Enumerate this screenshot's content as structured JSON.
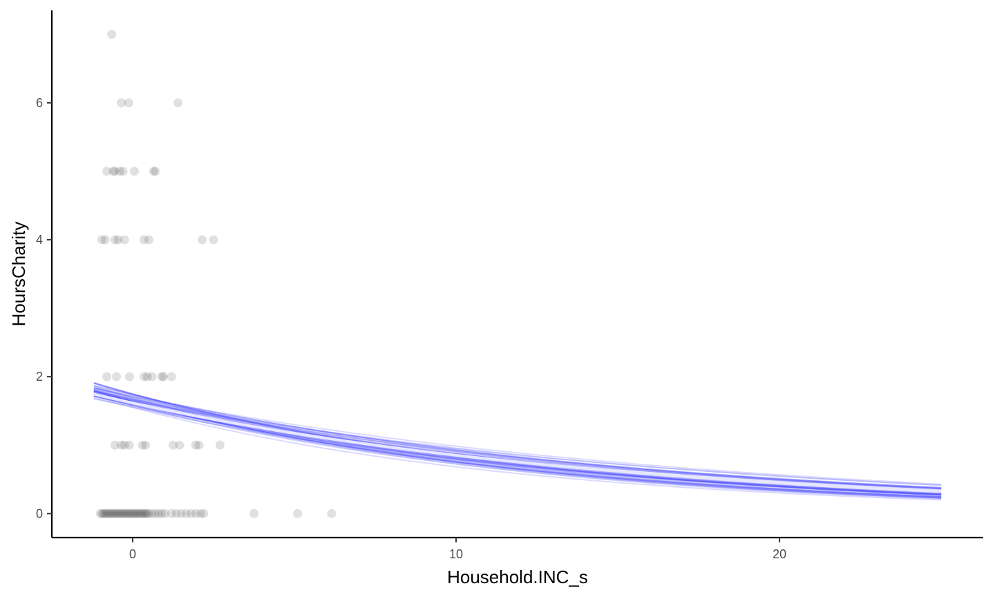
{
  "chart_data": {
    "type": "scatter",
    "xlabel": "Household.INC_s",
    "ylabel": "HoursCharity",
    "xlim": [
      -2.5,
      26.3
    ],
    "ylim": [
      -0.35,
      7.35
    ],
    "x_ticks": [
      0,
      10,
      20
    ],
    "x_tick_labels": [
      "0",
      "10",
      "20"
    ],
    "y_ticks": [
      0,
      2,
      4,
      6
    ],
    "y_tick_labels": [
      "0",
      "2",
      "4",
      "6"
    ],
    "grid": false,
    "legend": "none",
    "colors": {
      "points": "#000000",
      "fit_lines": "#3333ff",
      "mean_line": "#e6e6ff",
      "axis": "#000000"
    },
    "points": {
      "opacity": 0.12,
      "data": [
        [
          -0.65,
          7
        ],
        [
          -0.35,
          6
        ],
        [
          -0.12,
          6
        ],
        [
          1.4,
          6
        ],
        [
          -0.8,
          5
        ],
        [
          -0.6,
          5
        ],
        [
          -0.55,
          5
        ],
        [
          -0.4,
          5
        ],
        [
          -0.3,
          5
        ],
        [
          0.05,
          5
        ],
        [
          0.65,
          5
        ],
        [
          0.7,
          5
        ],
        [
          -0.95,
          4
        ],
        [
          -0.85,
          4
        ],
        [
          -0.55,
          4
        ],
        [
          -0.45,
          4
        ],
        [
          -0.25,
          4
        ],
        [
          0.35,
          4
        ],
        [
          0.5,
          4
        ],
        [
          2.15,
          4
        ],
        [
          2.5,
          4
        ],
        [
          -0.8,
          2
        ],
        [
          -0.5,
          2
        ],
        [
          -0.1,
          2
        ],
        [
          0.35,
          2
        ],
        [
          0.45,
          2
        ],
        [
          0.6,
          2
        ],
        [
          0.9,
          2
        ],
        [
          0.95,
          2
        ],
        [
          1.2,
          2
        ],
        [
          -0.55,
          1
        ],
        [
          -0.35,
          1
        ],
        [
          -0.25,
          1
        ],
        [
          -0.1,
          1
        ],
        [
          0.3,
          1
        ],
        [
          0.4,
          1
        ],
        [
          1.25,
          1
        ],
        [
          1.45,
          1
        ],
        [
          1.95,
          1
        ],
        [
          2.05,
          1
        ],
        [
          2.7,
          1
        ],
        [
          -1.0,
          0
        ],
        [
          -0.95,
          0
        ],
        [
          -0.9,
          0
        ],
        [
          -0.85,
          0
        ],
        [
          -0.8,
          0
        ],
        [
          -0.75,
          0
        ],
        [
          -0.7,
          0
        ],
        [
          -0.65,
          0
        ],
        [
          -0.6,
          0
        ],
        [
          -0.55,
          0
        ],
        [
          -0.5,
          0
        ],
        [
          -0.45,
          0
        ],
        [
          -0.4,
          0
        ],
        [
          -0.35,
          0
        ],
        [
          -0.3,
          0
        ],
        [
          -0.25,
          0
        ],
        [
          -0.2,
          0
        ],
        [
          -0.15,
          0
        ],
        [
          -0.1,
          0
        ],
        [
          -0.05,
          0
        ],
        [
          0.0,
          0
        ],
        [
          0.05,
          0
        ],
        [
          0.1,
          0
        ],
        [
          0.15,
          0
        ],
        [
          0.2,
          0
        ],
        [
          0.25,
          0
        ],
        [
          0.3,
          0
        ],
        [
          0.35,
          0
        ],
        [
          0.4,
          0
        ],
        [
          0.45,
          0
        ],
        [
          0.5,
          0
        ],
        [
          0.6,
          0
        ],
        [
          0.7,
          0
        ],
        [
          0.8,
          0
        ],
        [
          0.9,
          0
        ],
        [
          1.0,
          0
        ],
        [
          1.2,
          0
        ],
        [
          1.35,
          0
        ],
        [
          1.5,
          0
        ],
        [
          1.65,
          0
        ],
        [
          1.8,
          0
        ],
        [
          1.95,
          0
        ],
        [
          2.1,
          0
        ],
        [
          2.2,
          0
        ],
        [
          3.75,
          0
        ],
        [
          5.1,
          0
        ],
        [
          6.15,
          0
        ]
      ]
    },
    "fit_curves": {
      "x_range": [
        -1.2,
        25.0
      ],
      "count": 40,
      "opacity": 0.18,
      "intercept_center": 0.5,
      "intercept_spread": 0.06,
      "slope_center": -0.068,
      "slope_spread": 0.014
    },
    "mean_curve": {
      "intercept": 0.48,
      "slope": -0.064
    }
  }
}
